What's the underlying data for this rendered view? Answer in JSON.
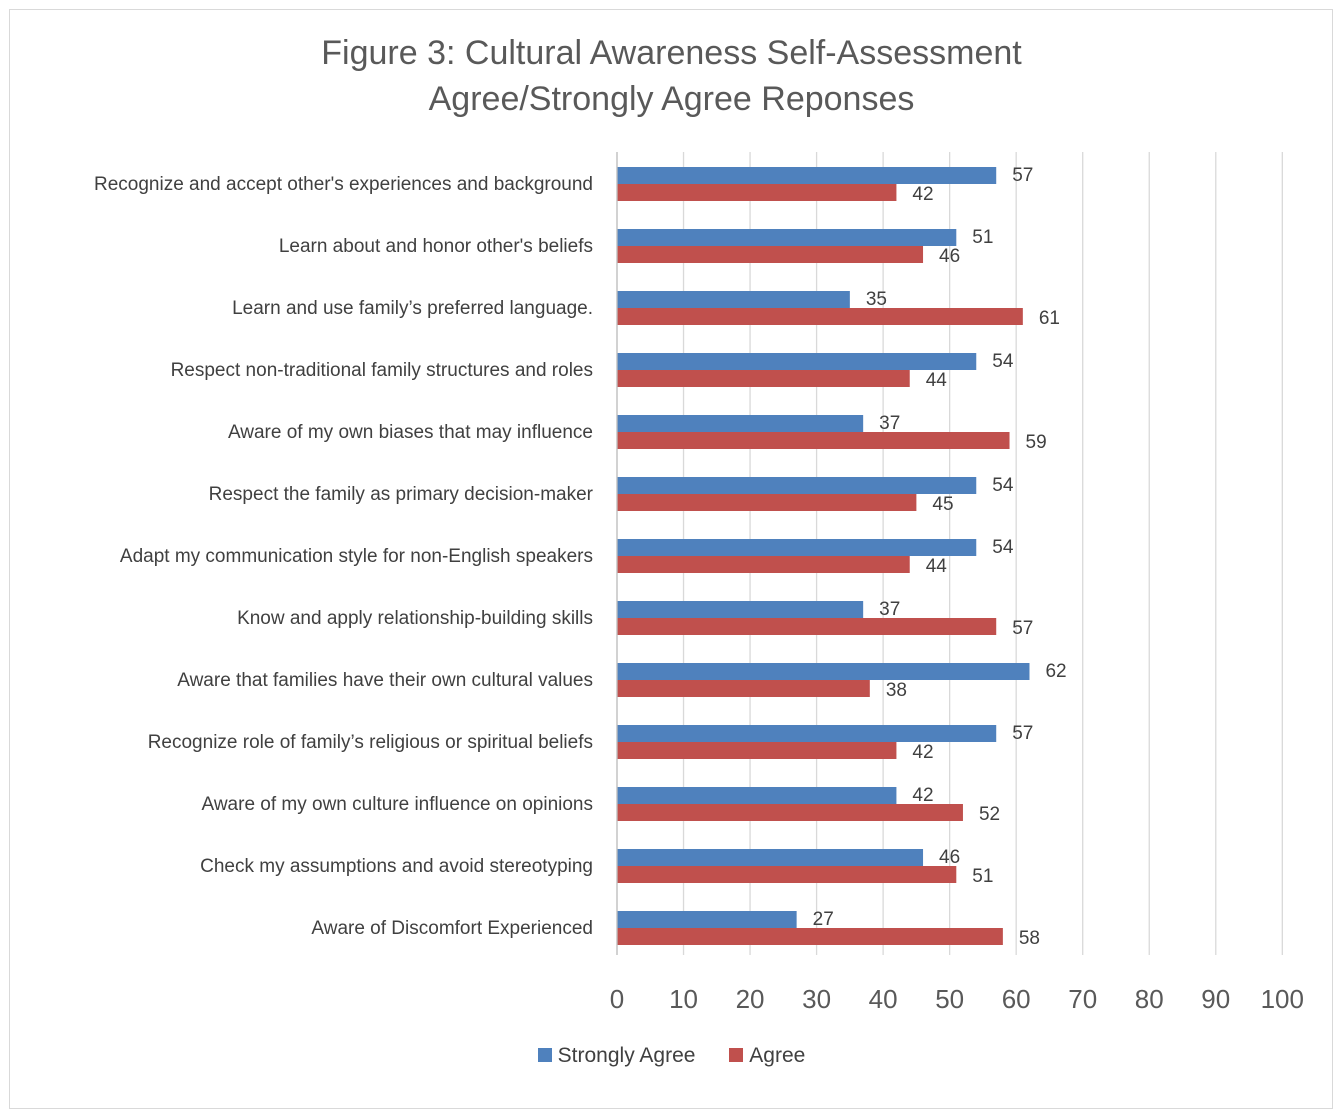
{
  "chart_data": {
    "type": "bar",
    "orientation": "horizontal",
    "title": "Figure 3: Cultural Awareness Self-Assessment",
    "subtitle": "Agree/Strongly Agree Reponses",
    "categories": [
      "Recognize and accept other's experiences and background",
      "Learn about and honor other's beliefs",
      "Learn and use family’s preferred language.",
      "Respect non-traditional family structures and roles",
      "Aware of my own biases that may influence",
      "Respect the family as primary decision-maker",
      "Adapt my communication style for non-English speakers",
      "Know and apply relationship-building skills",
      "Aware that families have their own cultural values",
      "Recognize role of family’s religious or spiritual beliefs",
      "Aware of my own culture influence on opinions",
      "Check my assumptions and avoid stereotyping",
      "Aware of Discomfort Experienced"
    ],
    "series": [
      {
        "name": "Strongly Agree",
        "color": "#4f81bd",
        "values": [
          57,
          51,
          35,
          54,
          37,
          54,
          54,
          37,
          62,
          57,
          42,
          46,
          27
        ]
      },
      {
        "name": "Agree",
        "color": "#c0504d",
        "values": [
          42,
          46,
          61,
          44,
          59,
          45,
          44,
          57,
          38,
          42,
          52,
          51,
          58
        ]
      }
    ],
    "xlim": [
      0,
      100
    ],
    "xticks": [
      0,
      10,
      20,
      30,
      40,
      50,
      60,
      70,
      80,
      90,
      100
    ],
    "grid": true,
    "legend_position": "bottom",
    "data_labels": true
  }
}
